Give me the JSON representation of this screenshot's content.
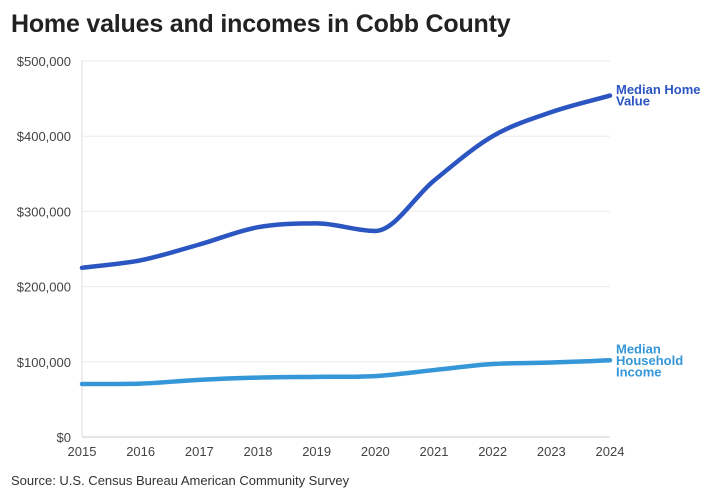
{
  "chart_data": {
    "type": "line",
    "title": "Home values and incomes in Cobb County",
    "source": "Source: U.S. Census Bureau American Community Survey",
    "x": [
      2015,
      2016,
      2017,
      2018,
      2019,
      2020,
      2021,
      2022,
      2023,
      2024
    ],
    "ylim": [
      0,
      500000
    ],
    "yticks": [
      0,
      100000,
      200000,
      300000,
      400000,
      500000
    ],
    "ytick_labels": [
      "$0",
      "$100,000",
      "$200,000",
      "$300,000",
      "$400,000",
      "$500,000"
    ],
    "grid": true,
    "series": [
      {
        "name": "Median Home Value",
        "name_lines": [
          "Median Home",
          "Value"
        ],
        "color": "#2b55c0",
        "values": [
          225000,
          235000,
          256000,
          279000,
          284000,
          274000,
          341000,
          400000,
          432000,
          454000
        ]
      },
      {
        "name": "Median Household Income",
        "name_lines": [
          "Median",
          "Household",
          "Income"
        ],
        "color": "#3597d8",
        "values": [
          70500,
          71000,
          76000,
          79000,
          80000,
          81000,
          89000,
          97000,
          99000,
          102000
        ]
      }
    ]
  }
}
